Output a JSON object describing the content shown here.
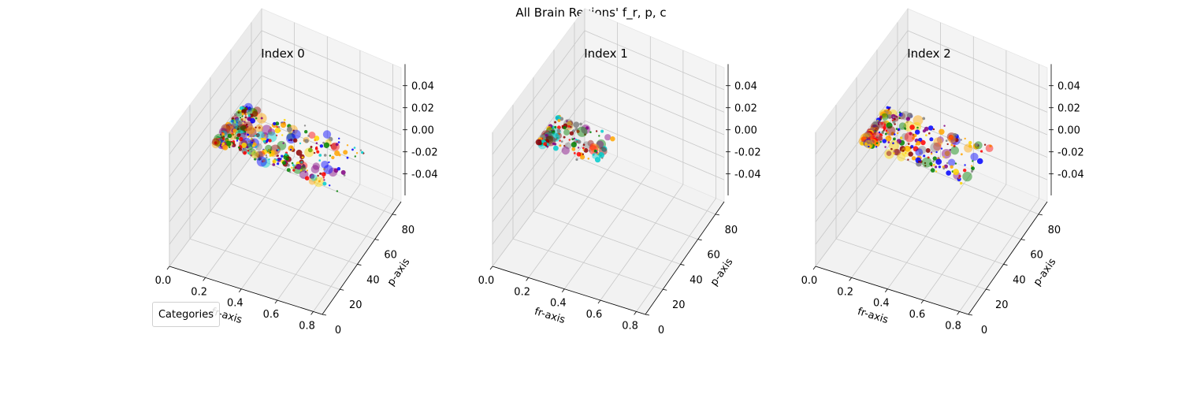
{
  "figure": {
    "suptitle": "All Brain Regions' f_r, p, c"
  },
  "legend": {
    "title": "Categories"
  },
  "chart_data": [
    {
      "type": "scatter",
      "title": "Index 0",
      "xlabel": "fr-axis",
      "ylabel": "p-axis",
      "zlabel": "",
      "xlim": [
        0,
        0.85
      ],
      "ylim": [
        0,
        90
      ],
      "zlim": [
        -0.05,
        0.05
      ],
      "xticks": [
        "0.0",
        "0.2",
        "0.4",
        "0.6",
        "0.8"
      ],
      "yticks": [
        "0",
        "20",
        "40",
        "60",
        "80"
      ],
      "zticks": [
        "-0.04",
        "-0.02",
        "0.00",
        "0.02",
        "0.04"
      ],
      "grid": true,
      "legend_position": "lower-left",
      "point_count": 420,
      "fr_spread": 0.7,
      "p_spread": 78,
      "seed": 11,
      "colors": [
        "#ff0000",
        "#008000",
        "#0000ff",
        "#ffa500",
        "#800080",
        "#808080",
        "#00cccc",
        "#8b0000",
        "#ffd700"
      ]
    },
    {
      "type": "scatter",
      "title": "Index 1",
      "xlabel": "fr-axis",
      "ylabel": "p-axis",
      "zlabel": "",
      "xlim": [
        0,
        0.85
      ],
      "ylim": [
        0,
        90
      ],
      "zlim": [
        -0.05,
        0.05
      ],
      "xticks": [
        "0.0",
        "0.2",
        "0.4",
        "0.6",
        "0.8"
      ],
      "yticks": [
        "0",
        "20",
        "40",
        "60",
        "80"
      ],
      "zticks": [
        "-0.04",
        "-0.02",
        "0.00",
        "0.02",
        "0.04"
      ],
      "grid": true,
      "point_count": 150,
      "fr_spread": 0.35,
      "p_spread": 55,
      "seed": 23,
      "colors": [
        "#ff0000",
        "#008000",
        "#808080",
        "#00cccc",
        "#800080",
        "#8b0000",
        "#ffa500"
      ]
    },
    {
      "type": "scatter",
      "title": "Index 2",
      "xlabel": "fr-axis",
      "ylabel": "p-axis",
      "zlabel": "",
      "xlim": [
        0,
        0.85
      ],
      "ylim": [
        0,
        90
      ],
      "zlim": [
        -0.05,
        0.05
      ],
      "xticks": [
        "0.0",
        "0.2",
        "0.4",
        "0.6",
        "0.8"
      ],
      "yticks": [
        "0",
        "20",
        "40",
        "60",
        "80"
      ],
      "zticks": [
        "-0.04",
        "-0.02",
        "0.00",
        "0.02",
        "0.04"
      ],
      "grid": true,
      "point_count": 330,
      "fr_spread": 0.6,
      "p_spread": 75,
      "seed": 37,
      "colors": [
        "#ff0000",
        "#008000",
        "#0000ff",
        "#ffa500",
        "#800080",
        "#808080",
        "#8b0000",
        "#ffd700"
      ]
    }
  ]
}
